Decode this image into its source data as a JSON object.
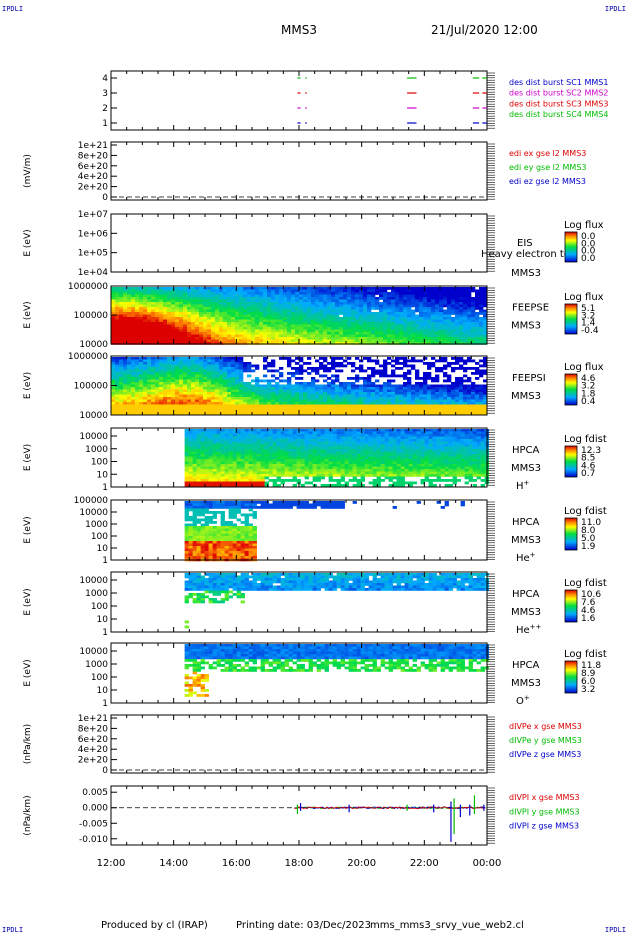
{
  "corner_label": "IPDLI",
  "header": {
    "spacecraft": "MMS3",
    "datetime": "21/Jul/2020 12:00"
  },
  "footer": {
    "produced": "Produced by cl (IRAP)",
    "printing": "Printing date: 03/Dec/2023",
    "script": "mms_mms3_srvy_vue_web2.cl"
  },
  "colors": {
    "red": "#dd0000",
    "green": "#00bb00",
    "blue": "#0000cc",
    "magenta": "#cc00cc",
    "axis": "#000000"
  },
  "chart_data": [
    {
      "type": "line",
      "panel": "burst",
      "yticks": [
        "1",
        "2",
        "3",
        "4"
      ],
      "ylim": [
        0.5,
        4.5
      ],
      "legend": [
        "des dist burst SC1 MMS1",
        "des dist burst SC2 MMS2",
        "des dist burst SC3 MMS3",
        "des dist burst SC4 MMS4"
      ],
      "legend_colors": [
        "#0000cc",
        "#cc00cc",
        "#dd0000",
        "#00bb00"
      ],
      "series": [
        {
          "name": "des dist burst SC1 MMS1",
          "y": 1,
          "segments": [
            [
              17.95,
              18.05
            ],
            [
              18.2,
              18.25
            ],
            [
              21.45,
              21.75
            ],
            [
              23.55,
              23.75
            ],
            [
              23.85,
              24.0
            ]
          ]
        },
        {
          "name": "des dist burst SC2 MMS2",
          "y": 2,
          "segments": [
            [
              17.95,
              18.05
            ],
            [
              18.2,
              18.25
            ],
            [
              21.45,
              21.75
            ],
            [
              23.55,
              23.75
            ],
            [
              23.85,
              24.0
            ]
          ]
        },
        {
          "name": "des dist burst SC3 MMS3",
          "y": 3,
          "segments": [
            [
              17.95,
              18.05
            ],
            [
              18.2,
              18.25
            ],
            [
              21.45,
              21.75
            ],
            [
              23.55,
              23.75
            ],
            [
              23.85,
              24.0
            ]
          ]
        },
        {
          "name": "des dist burst SC4 MMS4",
          "y": 4,
          "segments": [
            [
              17.95,
              18.05
            ],
            [
              18.2,
              18.25
            ],
            [
              21.45,
              21.75
            ],
            [
              23.55,
              23.75
            ],
            [
              23.85,
              24.0
            ]
          ]
        }
      ]
    },
    {
      "type": "line",
      "panel": "edi",
      "ylabel": "(mV/m)",
      "yticks": [
        "0",
        "2e+20",
        "4e+20",
        "6e+20",
        "8e+20",
        "1e+21"
      ],
      "ylim": [
        0,
        1e+21
      ],
      "zero_line": true,
      "legend": [
        "edi ex gse l2 MMS3",
        "edi ey gse l2 MMS3",
        "edi ez gse l2 MMS3"
      ],
      "legend_colors": [
        "#dd0000",
        "#00bb00",
        "#0000cc"
      ]
    },
    {
      "type": "heatmap",
      "panel": "eis",
      "ylabel": "E (eV)",
      "yticks": [
        "1e+04",
        "1e+05",
        "1e+06",
        "1e+07"
      ],
      "ylim": [
        10000,
        10000000
      ],
      "instrument": "EIS",
      "instrument_sub": "MMS3",
      "overlay_text": "Heavy electron to",
      "cbar_title": "Log flux",
      "cbar_ticks": [
        "0.0",
        "0.0",
        "0.0",
        "0.0"
      ]
    },
    {
      "type": "heatmap",
      "panel": "feeps_e",
      "ylabel": "E (eV)",
      "yticks": [
        "10000",
        "100000",
        "1000000"
      ],
      "ylim": [
        10000,
        1000000
      ],
      "instrument": "FEEPSE",
      "instrument_sub": "MMS3",
      "cbar_title": "Log flux",
      "cbar_ticks": [
        "5.1",
        "3.2",
        "1.4",
        "-0.4"
      ]
    },
    {
      "type": "heatmap",
      "panel": "feeps_i",
      "ylabel": "E (eV)",
      "yticks": [
        "10000",
        "100000",
        "1000000"
      ],
      "ylim": [
        10000,
        1000000
      ],
      "instrument": "FEEPSI",
      "instrument_sub": "MMS3",
      "cbar_title": "Log flux",
      "cbar_ticks": [
        "4.6",
        "3.2",
        "1.8",
        "0.4"
      ]
    },
    {
      "type": "heatmap",
      "panel": "hpca_h",
      "ylabel": "E (eV)",
      "yticks": [
        "1",
        "10",
        "100",
        "1000",
        "10000"
      ],
      "ylim": [
        1,
        40000
      ],
      "instrument": "HPCA",
      "instrument_sub": "MMS3",
      "species": "H",
      "species_sup": "+",
      "cbar_title": "Log fdist",
      "cbar_ticks": [
        "12.3",
        "8.5",
        "4.6",
        "0.7"
      ],
      "data_start": 14.35
    },
    {
      "type": "heatmap",
      "panel": "hpca_he",
      "ylabel": "E (eV)",
      "yticks": [
        "1",
        "10",
        "100",
        "1000",
        "10000",
        "100000"
      ],
      "ylim": [
        1,
        100000
      ],
      "instrument": "HPCA",
      "instrument_sub": "MMS3",
      "species": "He",
      "species_sup": "+",
      "cbar_title": "Log fdist",
      "cbar_ticks": [
        "11.0",
        "8.0",
        "5.0",
        "1.9"
      ],
      "data_start": 14.35
    },
    {
      "type": "heatmap",
      "panel": "hpca_hepp",
      "ylabel": "E (eV)",
      "yticks": [
        "1",
        "10",
        "100",
        "1000",
        "10000"
      ],
      "ylim": [
        1,
        40000
      ],
      "instrument": "HPCA",
      "instrument_sub": "MMS3",
      "species": "He",
      "species_sup": "++",
      "cbar_title": "Log fdist",
      "cbar_ticks": [
        "10.6",
        "7.6",
        "4.6",
        "1.6"
      ],
      "data_start": 14.35
    },
    {
      "type": "heatmap",
      "panel": "hpca_o",
      "ylabel": "E (eV)",
      "yticks": [
        "1",
        "10",
        "100",
        "1000",
        "10000"
      ],
      "ylim": [
        1,
        40000
      ],
      "instrument": "HPCA",
      "instrument_sub": "MMS3",
      "species": "O",
      "species_sup": "+",
      "cbar_title": "Log fdist",
      "cbar_ticks": [
        "11.8",
        "8.9",
        "6.0",
        "3.2"
      ],
      "data_start": 14.35
    },
    {
      "type": "line",
      "panel": "divpe",
      "ylabel": "(nPa/km)",
      "yticks": [
        "0",
        "2e+20",
        "4e+20",
        "6e+20",
        "8e+20",
        "1e+21"
      ],
      "ylim": [
        0,
        1e+21
      ],
      "zero_line": true,
      "legend": [
        "dIVPe x gse MMS3",
        "dIVPe y gse MMS3",
        "dIVPe z gse MMS3"
      ],
      "legend_colors": [
        "#dd0000",
        "#00bb00",
        "#0000cc"
      ]
    },
    {
      "type": "line",
      "panel": "divpi",
      "ylabel": "(nPa/km)",
      "yticks": [
        "-0.010",
        "-0.005",
        "0.000",
        "0.005"
      ],
      "ylim": [
        -0.012,
        0.007
      ],
      "zero_line": true,
      "legend": [
        "dIVPI x gse MMS3",
        "dIVPI y gse MMS3",
        "dIVPI z gse MMS3"
      ],
      "legend_colors": [
        "#dd0000",
        "#00bb00",
        "#0000cc"
      ],
      "data_start": 17.85,
      "spikes": [
        {
          "t": 17.95,
          "min": -0.002,
          "max": 0.001
        },
        {
          "t": 18.05,
          "min": -0.001,
          "max": 0.0015
        },
        {
          "t": 19.6,
          "min": -0.0015,
          "max": 0.001
        },
        {
          "t": 21.45,
          "min": -0.001,
          "max": 0.001
        },
        {
          "t": 22.3,
          "min": -0.0015,
          "max": 0.001
        },
        {
          "t": 22.85,
          "min": -0.011,
          "max": 0.002
        },
        {
          "t": 22.95,
          "min": -0.0085,
          "max": 0.003
        },
        {
          "t": 23.15,
          "min": -0.003,
          "max": 0.001
        },
        {
          "t": 23.45,
          "min": -0.0025,
          "max": 0.001
        },
        {
          "t": 23.6,
          "min": -0.002,
          "max": 0.004
        },
        {
          "t": 23.9,
          "min": -0.001,
          "max": 0.001
        }
      ]
    }
  ],
  "time_axis": {
    "ticks": [
      "12:00",
      "14:00",
      "16:00",
      "18:00",
      "20:00",
      "22:00",
      "00:00"
    ],
    "xlim": [
      12,
      24
    ]
  }
}
